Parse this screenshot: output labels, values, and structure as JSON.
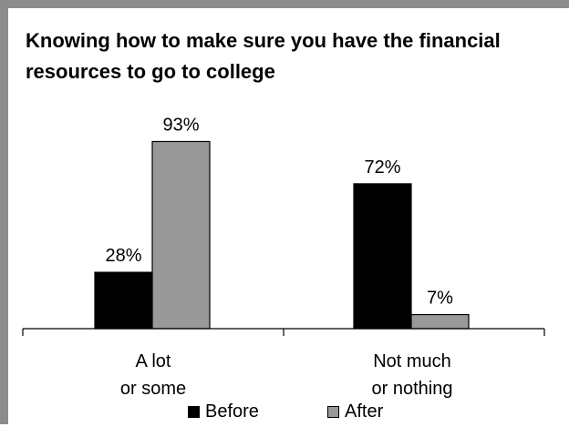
{
  "chart_data": {
    "type": "bar",
    "title": "Knowing how to make sure you have the financial resources to go to college",
    "categories": [
      "A lot\nor some",
      "Not much\nor nothing"
    ],
    "series": [
      {
        "name": "Before",
        "values": [
          28,
          72
        ],
        "labels": [
          "28%",
          "72%"
        ],
        "color": "#000000"
      },
      {
        "name": "After",
        "values": [
          93,
          7
        ],
        "labels": [
          "93%",
          "7%"
        ],
        "color": "#999999"
      }
    ],
    "ylim": [
      0,
      100
    ],
    "grid": false,
    "legend": "bottom"
  }
}
